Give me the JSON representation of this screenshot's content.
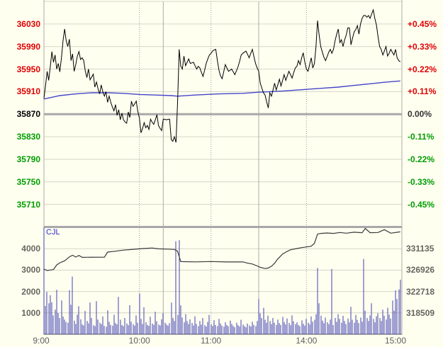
{
  "colors": {
    "background": "#fffff0",
    "grid": "#d6d6c6",
    "border": "#a8a8a8",
    "session_line": "#ababa3",
    "hour_line": "#9c9c94",
    "up_text": "#e00000",
    "down_text": "#009c00",
    "flat_text": "#000000",
    "price_line": "#000000",
    "avg_line": "#4545c8",
    "volume_bar": "#4040b4",
    "oi_line": "#3a3a3a",
    "contract_label": "#2929cc",
    "time_text": "#5f5f5f",
    "vol_axis_text": "#666660"
  },
  "chart_data": [
    {
      "type": "line",
      "panel": "price",
      "prev_close": 35870,
      "y_range": [
        35670,
        36070
      ],
      "y_left_ticks": [
        {
          "value": "36030",
          "color": "#e00000"
        },
        {
          "value": "35990",
          "color": "#e00000"
        },
        {
          "value": "35950",
          "color": "#e00000"
        },
        {
          "value": "35910",
          "color": "#e00000"
        },
        {
          "value": "35870",
          "color": "#000000"
        },
        {
          "value": "35830",
          "color": "#009c00"
        },
        {
          "value": "35790",
          "color": "#009c00"
        },
        {
          "value": "35750",
          "color": "#009c00"
        },
        {
          "value": "35710",
          "color": "#009c00"
        }
      ],
      "y_right_ticks": [
        {
          "label": "+0.45%",
          "color": "#e00000"
        },
        {
          "label": "+0.33%",
          "color": "#e00000"
        },
        {
          "label": "+0.22%",
          "color": "#e00000"
        },
        {
          "label": "+0.11%",
          "color": "#e00000"
        },
        {
          "label": "0.00%",
          "color": "#333333"
        },
        {
          "label": "-0.11%",
          "color": "#009c00"
        },
        {
          "label": "-0.22%",
          "color": "#009c00"
        },
        {
          "label": "-0.33%",
          "color": "#009c00"
        },
        {
          "label": "-0.45%",
          "color": "#009c00"
        }
      ],
      "x_ticks": [
        {
          "minute": 0,
          "label": "9:00"
        },
        {
          "minute": 60,
          "label": "10:00"
        },
        {
          "minute": 105,
          "label": "11:00"
        },
        {
          "minute": 165,
          "label": "14:00"
        },
        {
          "minute": 225,
          "label": "15:00"
        }
      ],
      "hour_line_minutes": [
        60,
        105,
        165
      ],
      "session_break_minutes": [
        75,
        135
      ],
      "minutes_total": 225,
      "series": [
        {
          "name": "price",
          "color": "#000000",
          "values": [
            35898,
            35920,
            35946,
            35930,
            35955,
            35981,
            35962,
            35975,
            35950,
            35960,
            35945,
            35970,
            36000,
            36021,
            36000,
            35990,
            36003,
            35965,
            35977,
            35946,
            35958,
            35973,
            35981,
            35967,
            35970,
            35965,
            35946,
            35935,
            35950,
            35931,
            35936,
            35941,
            35918,
            35927,
            35915,
            35906,
            35922,
            35910,
            35902,
            35910,
            35891,
            35902,
            35891,
            35883,
            35876,
            35887,
            35868,
            35878,
            35860,
            35872,
            35860,
            35856,
            35854,
            35874,
            35864,
            35893,
            35884,
            35888,
            35893,
            35875,
            35863,
            35837,
            35845,
            35855,
            35846,
            35850,
            35843,
            35861,
            35856,
            35852,
            35860,
            35869,
            35850,
            35845,
            35841,
            35861,
            35861,
            35860,
            35861,
            35861,
            35825,
            35822,
            35830,
            35820,
            35890,
            35985,
            35955,
            35950,
            35973,
            35956,
            35962,
            35968,
            35960,
            35961,
            35962,
            35956,
            35950,
            35955,
            35952,
            35944,
            35937,
            35948,
            35960,
            35968,
            35975,
            35978,
            35982,
            35984,
            35985,
            35966,
            35948,
            35938,
            35933,
            35945,
            35958,
            35952,
            35946,
            35948,
            35950,
            35945,
            35940,
            35947,
            35954,
            35964,
            35975,
            35978,
            35980,
            35982,
            35976,
            35970,
            35978,
            35985,
            35972,
            35960,
            35952,
            35946,
            35925,
            35916,
            35908,
            35904,
            35892,
            35881,
            35908,
            35902,
            35913,
            35925,
            35913,
            35922,
            35932,
            35920,
            35930,
            35940,
            35930,
            35938,
            35946,
            35940,
            35934,
            35944,
            35952,
            35955,
            35965,
            35958,
            35970,
            35979,
            35962,
            35950,
            35946,
            35958,
            35970,
            35952,
            35960,
            35990,
            36036,
            36010,
            35990,
            35980,
            35971,
            35965,
            35972,
            35980,
            35985,
            35978,
            35985,
            36000,
            36012,
            36021,
            35997,
            36002,
            35990,
            36002,
            36010,
            36023,
            36023,
            35993,
            36005,
            36016,
            36020,
            36027,
            36012,
            36030,
            36040,
            36045,
            36045,
            36042,
            36045,
            36040,
            36048,
            36055,
            36040,
            36028,
            36008,
            35990,
            35985,
            35975,
            35982,
            35990,
            35973,
            35978,
            35985,
            35980,
            35975,
            35985,
            35970,
            35965,
            35963
          ]
        },
        {
          "name": "average-price",
          "color": "#4545c8",
          "points": [
            [
              0,
              35897
            ],
            [
              10,
              35903
            ],
            [
              20,
              35906
            ],
            [
              30,
              35908
            ],
            [
              40,
              35908
            ],
            [
              50,
              35907
            ],
            [
              60,
              35905
            ],
            [
              70,
              35904
            ],
            [
              80,
              35903
            ],
            [
              84,
              35902
            ],
            [
              95,
              35904
            ],
            [
              110,
              35906
            ],
            [
              125,
              35907
            ],
            [
              135,
              35909
            ],
            [
              150,
              35911
            ],
            [
              165,
              35914
            ],
            [
              175,
              35916
            ],
            [
              185,
              35918
            ],
            [
              195,
              35921
            ],
            [
              205,
              35924
            ],
            [
              215,
              35927
            ],
            [
              224,
              35929
            ]
          ]
        }
      ]
    },
    {
      "type": "bar",
      "panel": "volume",
      "label": "CJL",
      "y_left_ticks": [
        "4000",
        "3000",
        "2000",
        "1000"
      ],
      "y_left_range": [
        0,
        5000
      ],
      "y_right_ticks": [
        "331135",
        "326926",
        "322718",
        "318509"
      ],
      "y_right_range": [
        314300,
        335275
      ],
      "bars": {
        "name": "volume",
        "color": "#4040b4",
        "values": [
          5000,
          1320,
          1980,
          1450,
          1820,
          1500,
          880,
          1150,
          2080,
          990,
          760,
          1580,
          830,
          690,
          580,
          540,
          2060,
          1380,
          2700,
          640,
          480,
          920,
          1310,
          700,
          460,
          410,
          1090,
          620,
          510,
          1480,
          760,
          420,
          380,
          1550,
          690,
          540,
          470,
          830,
          390,
          350,
          1120,
          580,
          440,
          400,
          910,
          520,
          460,
          1750,
          680,
          430,
          380,
          760,
          510,
          420,
          1360,
          590,
          470,
          400,
          880,
          540,
          1900,
          720,
          480,
          1260,
          560,
          430,
          390,
          820,
          500,
          440,
          1050,
          610,
          450,
          410,
          700,
          980,
          540,
          450,
          400,
          520,
          1480,
          760,
          620,
          4350,
          900,
          4400,
          1350,
          780,
          560,
          940,
          620,
          480,
          700,
          530,
          410,
          840,
          490,
          380,
          620,
          450,
          760,
          420,
          360,
          580,
          900,
          470,
          390,
          660,
          430,
          380,
          720,
          510,
          400,
          350,
          560,
          430,
          370,
          640,
          480,
          390,
          330,
          540,
          420,
          360,
          680,
          450,
          380,
          320,
          500,
          410,
          360,
          590,
          440,
          380,
          620,
          1650,
          980,
          760,
          1240,
          680,
          540,
          870,
          620,
          480,
          760,
          540,
          430,
          690,
          520,
          440,
          810,
          570,
          460,
          740,
          530,
          420,
          880,
          610,
          470,
          560,
          430,
          380,
          650,
          490,
          400,
          720,
          540,
          460,
          830,
          590,
          680,
          940,
          3100,
          1450,
          870,
          640,
          520,
          780,
          560,
          470,
          690,
          3050,
          430,
          760,
          580,
          940,
          720,
          540,
          860,
          620,
          480,
          740,
          560,
          1280,
          680,
          540,
          900,
          670,
          520,
          780,
          590,
          3520,
          1100,
          760,
          620,
          880,
          1450,
          720,
          560,
          840,
          980,
          760,
          620,
          1150,
          870,
          690,
          1240,
          920,
          740,
          1580,
          1100,
          2050,
          1650,
          2100,
          2550
        ]
      },
      "line": {
        "name": "open-interest",
        "color": "#3a3a3a",
        "points": [
          [
            0,
            327100
          ],
          [
            2,
            326800
          ],
          [
            4,
            326900
          ],
          [
            6,
            327000
          ],
          [
            8,
            327900
          ],
          [
            10,
            328320
          ],
          [
            13,
            328700
          ],
          [
            16,
            329480
          ],
          [
            18,
            329800
          ],
          [
            20,
            329440
          ],
          [
            22,
            329760
          ],
          [
            24,
            329380
          ],
          [
            27,
            329400
          ],
          [
            38,
            329420
          ],
          [
            40,
            330410
          ],
          [
            45,
            330590
          ],
          [
            50,
            330800
          ],
          [
            56,
            330960
          ],
          [
            62,
            331110
          ],
          [
            68,
            331220
          ],
          [
            72,
            331050
          ],
          [
            78,
            330990
          ],
          [
            82,
            330940
          ],
          [
            84,
            330600
          ],
          [
            86,
            328550
          ],
          [
            95,
            328500
          ],
          [
            105,
            328560
          ],
          [
            115,
            328480
          ],
          [
            125,
            328500
          ],
          [
            128,
            328250
          ],
          [
            131,
            328080
          ],
          [
            134,
            327700
          ],
          [
            136,
            327430
          ],
          [
            139,
            327190
          ],
          [
            141,
            327290
          ],
          [
            143,
            327630
          ],
          [
            145,
            328230
          ],
          [
            147,
            329060
          ],
          [
            150,
            330040
          ],
          [
            152,
            330410
          ],
          [
            155,
            330870
          ],
          [
            158,
            331050
          ],
          [
            162,
            331290
          ],
          [
            165,
            331430
          ],
          [
            168,
            331570
          ],
          [
            170,
            332130
          ],
          [
            172,
            333940
          ],
          [
            174,
            334080
          ],
          [
            178,
            334170
          ],
          [
            182,
            334080
          ],
          [
            186,
            334260
          ],
          [
            190,
            334120
          ],
          [
            195,
            334310
          ],
          [
            200,
            334220
          ],
          [
            202,
            335060
          ],
          [
            205,
            334220
          ],
          [
            210,
            334260
          ],
          [
            214,
            334820
          ],
          [
            218,
            334120
          ],
          [
            222,
            334300
          ],
          [
            224,
            334400
          ]
        ]
      }
    }
  ]
}
